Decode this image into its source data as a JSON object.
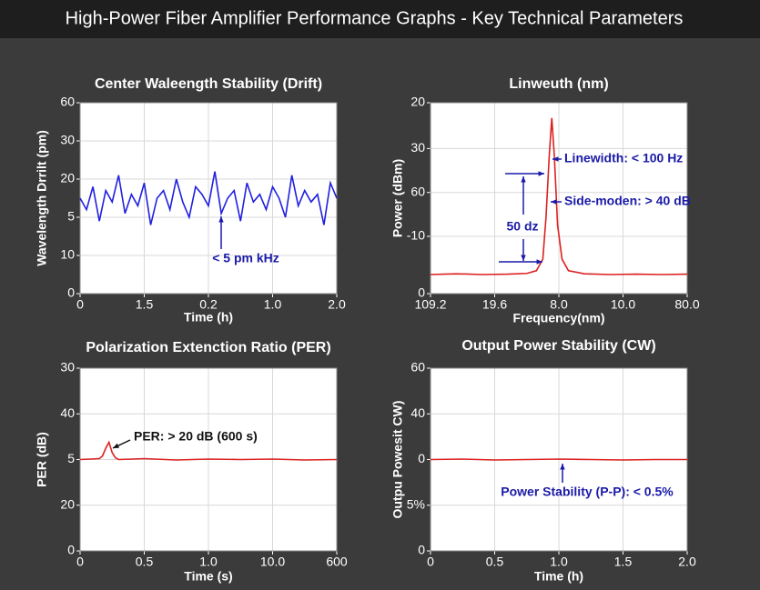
{
  "title": "High-Power Fiber Amplifier Performance Graphs - Key Technical Parameters",
  "chart_data": [
    {
      "type": "line",
      "title": "Center Waleength Stability (Drift)",
      "x_label": "Time (h)",
      "y_label": "Wavelength Drrilt (pm)",
      "xlim": [
        0,
        2
      ],
      "xticks": [
        0,
        {
          "value": 0.5,
          "label": "1.5"
        },
        {
          "value": 1,
          "label": "0.2"
        },
        {
          "value": 1.5,
          "label": "1.0"
        },
        {
          "value": 2,
          "label": "2.0"
        }
      ],
      "ylim": [
        0,
        50
      ],
      "yticks": [
        0,
        {
          "value": 10,
          "label": "10"
        },
        {
          "value": 20,
          "label": "5"
        },
        {
          "value": 30,
          "label": "20"
        },
        {
          "value": 40,
          "label": "30"
        },
        {
          "value": 50,
          "label": "60"
        }
      ],
      "grid": true,
      "x": [
        0,
        0.05,
        0.1,
        0.15,
        0.2,
        0.25,
        0.3,
        0.35,
        0.4,
        0.45,
        0.5,
        0.55,
        0.6,
        0.65,
        0.7,
        0.75,
        0.8,
        0.85,
        0.9,
        0.95,
        1,
        1.05,
        1.1,
        1.15,
        1.2,
        1.25,
        1.3,
        1.35,
        1.4,
        1.45,
        1.5,
        1.55,
        1.6,
        1.65,
        1.7,
        1.75,
        1.8,
        1.85,
        1.9,
        1.95,
        2
      ],
      "series": [
        {
          "color": "#2020e0",
          "values": [
            25,
            22,
            28,
            19,
            27,
            24,
            31,
            21,
            26,
            23,
            29,
            18,
            25,
            27,
            22,
            30,
            24,
            20,
            28,
            26,
            23,
            32,
            21,
            25,
            27,
            19,
            29,
            24,
            26,
            22,
            28,
            25,
            20,
            31,
            23,
            27,
            24,
            26,
            18,
            29,
            25
          ]
        }
      ],
      "annotations": [
        {
          "text": "< 5 pm kHz",
          "color": "#1a1aa8"
        }
      ]
    },
    {
      "type": "line",
      "title": "Linweuth (nm)",
      "x_label": "Frequency(nm)",
      "y_label": "Power (dBm)",
      "xlim": [
        0,
        4
      ],
      "xticks": [
        {
          "value": 0,
          "label": "109.2"
        },
        {
          "value": 1,
          "label": "19.6"
        },
        {
          "value": 2,
          "label": "8.0"
        },
        {
          "value": 3,
          "label": "10.0"
        },
        {
          "value": 4,
          "label": "80.0"
        }
      ],
      "ylim": [
        0,
        50
      ],
      "yticks": [
        0,
        {
          "value": 15,
          "label": "-10"
        },
        {
          "value": 26.5,
          "label": "60"
        },
        {
          "value": 38,
          "label": "30"
        },
        {
          "value": 50,
          "label": "20"
        }
      ],
      "grid": true,
      "x": [
        0,
        0.4,
        0.8,
        1.2,
        1.5,
        1.65,
        1.75,
        1.8,
        1.85,
        1.89,
        1.93,
        1.98,
        2.05,
        2.15,
        2.4,
        2.8,
        3.2,
        3.6,
        4
      ],
      "series": [
        {
          "color": "#dd2020",
          "values": [
            5,
            5.2,
            5,
            5.1,
            5.3,
            6,
            9,
            20,
            36,
            46,
            36,
            18,
            9,
            6,
            5.2,
            5,
            5.1,
            5,
            5.1
          ]
        }
      ],
      "annotations": [
        {
          "text": "Linewidth: < 100 Hz",
          "color": "#1a1aa8"
        },
        {
          "text": "Side-moden: > 40 dB",
          "color": "#1a1aa8"
        },
        {
          "text": "50 dz",
          "color": "#1a1aa8"
        }
      ]
    },
    {
      "type": "line",
      "title": "Polarization Extenction Ratio (PER)",
      "x_label": "Time (s)",
      "y_label": "PER (dB)",
      "xlim": [
        0,
        4
      ],
      "xticks": [
        0,
        {
          "value": 1,
          "label": "0.5"
        },
        {
          "value": 2,
          "label": "1.0"
        },
        {
          "value": 3,
          "label": "10.0"
        },
        {
          "value": 4,
          "label": "600"
        }
      ],
      "ylim": [
        0,
        40
      ],
      "yticks": [
        0,
        {
          "value": 10,
          "label": "20"
        },
        {
          "value": 20,
          "label": "5"
        },
        {
          "value": 30,
          "label": "40"
        },
        {
          "value": 40,
          "label": "30"
        }
      ],
      "grid": true,
      "x": [
        0,
        0.3,
        0.35,
        0.4,
        0.45,
        0.5,
        0.55,
        0.6,
        1,
        1.5,
        2,
        2.5,
        3,
        3.5,
        4
      ],
      "series": [
        {
          "color": "#dd2020",
          "values": [
            20,
            20.2,
            20.8,
            22.5,
            23.8,
            21.5,
            20.4,
            20,
            20.2,
            19.9,
            20.1,
            20,
            20.1,
            19.9,
            20
          ]
        }
      ],
      "annotations": [
        {
          "text": "PER: > 20 dB (600 s)",
          "color": "#111111"
        }
      ]
    },
    {
      "type": "line",
      "title": "Output Power Stability (CW)",
      "x_label": "Time (h)",
      "y_label": "Outpu Powesit CW)",
      "xlim": [
        0,
        2
      ],
      "xticks": [
        0,
        0.5,
        {
          "value": 1,
          "label": "1.0"
        },
        1.5,
        {
          "value": 2,
          "label": "2.0"
        }
      ],
      "ylim": [
        0,
        4
      ],
      "yticks": [
        0,
        {
          "value": 1,
          "label": "5%"
        },
        {
          "value": 2,
          "label": "0"
        },
        {
          "value": 3,
          "label": "40"
        },
        {
          "value": 4,
          "label": "60"
        }
      ],
      "grid": true,
      "x": [
        0,
        0.25,
        0.5,
        0.75,
        1,
        1.25,
        1.5,
        1.75,
        2
      ],
      "series": [
        {
          "color": "#dd2020",
          "values": [
            2,
            2.01,
            1.99,
            2,
            2.01,
            2,
            1.99,
            2,
            2
          ]
        }
      ],
      "annotations": [
        {
          "text": "Power Stability (P-P): < 0.5%",
          "color": "#1a1aa8"
        }
      ]
    }
  ]
}
